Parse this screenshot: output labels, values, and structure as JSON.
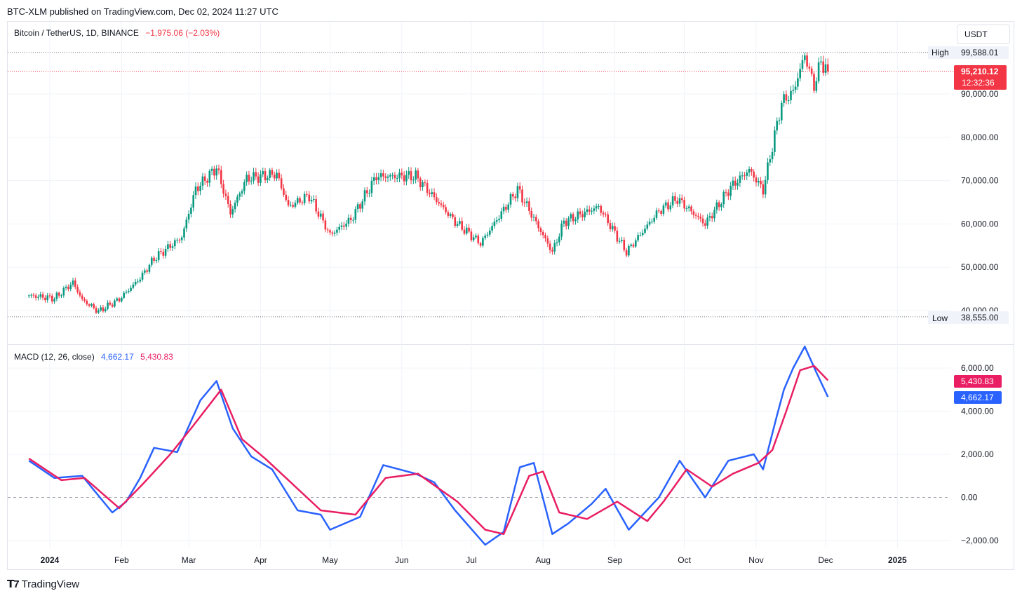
{
  "header": {
    "published": "BTC-XLM published on TradingView.com, Dec 02, 2024 11:27 UTC"
  },
  "legend": {
    "symbol": "Bitcoin / TetherUS, 1D, BINANCE",
    "change": "−1,975.06 (−2.03%)",
    "change_color": "#f23645"
  },
  "currency_button": "USDT",
  "price_axis": {
    "labels": [
      "90,000.00",
      "80,000.00",
      "70,000.00",
      "60,000.00",
      "50,000.00",
      "40,000.00"
    ],
    "high_label": "High",
    "high_value": "99,588.01",
    "low_label": "Low",
    "low_value": "38,555.00",
    "last_price": "95,210.12",
    "countdown": "12:32:36"
  },
  "macd_axis": {
    "labels": [
      "6,000.00",
      "4,000.00",
      "2,000.00",
      "0.00",
      "−2,000.00"
    ],
    "signal_value": "5,430.83",
    "macd_value": "4,662.17"
  },
  "macd_legend": {
    "title": "MACD (12, 26, close)",
    "macd": "4,662.17",
    "signal": "5,430.83"
  },
  "time_axis": [
    "2024",
    "Feb",
    "Mar",
    "Apr",
    "May",
    "Jun",
    "Jul",
    "Aug",
    "Sep",
    "Oct",
    "Nov",
    "Dec",
    "2025"
  ],
  "colors": {
    "up": "#089981",
    "down": "#f23645",
    "macd": "#2962ff",
    "signal": "#e91e63",
    "grid": "#f0f3fa"
  },
  "footer": {
    "brand": "TradingView"
  },
  "chart_data": [
    {
      "type": "candlestick",
      "title": "Bitcoin / TetherUS, 1D, BINANCE",
      "ylim": [
        38555,
        99588.01
      ],
      "x_start": "2023-12-23",
      "x_end": "2024-12-02",
      "anchors": [
        {
          "date": "2023-12-23",
          "close": 43500
        },
        {
          "date": "2024-01-03",
          "close": 42800
        },
        {
          "date": "2024-01-11",
          "close": 46500
        },
        {
          "date": "2024-01-15",
          "close": 42500
        },
        {
          "date": "2024-01-22",
          "close": 39800
        },
        {
          "date": "2024-01-31",
          "close": 42600
        },
        {
          "date": "2024-02-09",
          "close": 47500
        },
        {
          "date": "2024-02-15",
          "close": 52000
        },
        {
          "date": "2024-02-27",
          "close": 57000
        },
        {
          "date": "2024-03-04",
          "close": 68000
        },
        {
          "date": "2024-03-13",
          "close": 73000
        },
        {
          "date": "2024-03-19",
          "close": 62500
        },
        {
          "date": "2024-03-26",
          "close": 70500
        },
        {
          "date": "2024-04-08",
          "close": 71500
        },
        {
          "date": "2024-04-13",
          "close": 64000
        },
        {
          "date": "2024-04-22",
          "close": 66500
        },
        {
          "date": "2024-05-01",
          "close": 57500
        },
        {
          "date": "2024-05-10",
          "close": 61000
        },
        {
          "date": "2024-05-21",
          "close": 71000
        },
        {
          "date": "2024-06-07",
          "close": 71000
        },
        {
          "date": "2024-06-24",
          "close": 60500
        },
        {
          "date": "2024-07-05",
          "close": 55500
        },
        {
          "date": "2024-07-21",
          "close": 68000
        },
        {
          "date": "2024-08-05",
          "close": 53500
        },
        {
          "date": "2024-08-10",
          "close": 60500
        },
        {
          "date": "2024-08-25",
          "close": 64000
        },
        {
          "date": "2024-09-06",
          "close": 53500
        },
        {
          "date": "2024-09-20",
          "close": 63000
        },
        {
          "date": "2024-09-28",
          "close": 65800
        },
        {
          "date": "2024-10-10",
          "close": 60000
        },
        {
          "date": "2024-10-21",
          "close": 68500
        },
        {
          "date": "2024-10-29",
          "close": 72500
        },
        {
          "date": "2024-11-04",
          "close": 67800
        },
        {
          "date": "2024-11-12",
          "close": 88000
        },
        {
          "date": "2024-11-17",
          "close": 90500
        },
        {
          "date": "2024-11-22",
          "close": 99000
        },
        {
          "date": "2024-11-26",
          "close": 91800
        },
        {
          "date": "2024-11-29",
          "close": 97500
        },
        {
          "date": "2024-12-02",
          "close": 95210.12
        }
      ],
      "high": 99588.01,
      "low": 38555.0,
      "last": 95210.12
    },
    {
      "type": "line",
      "title": "MACD (12, 26, close)",
      "ylim": [
        -2300,
        7000
      ],
      "series": [
        {
          "name": "MACD",
          "color": "#2962ff",
          "points": [
            [
              "2023-12-23",
              1700
            ],
            [
              "2024-01-03",
              900
            ],
            [
              "2024-01-15",
              1000
            ],
            [
              "2024-01-28",
              -700
            ],
            [
              "2024-02-03",
              -200
            ],
            [
              "2024-02-09",
              900
            ],
            [
              "2024-02-15",
              2300
            ],
            [
              "2024-02-25",
              2100
            ],
            [
              "2024-03-06",
              4500
            ],
            [
              "2024-03-13",
              5400
            ],
            [
              "2024-03-20",
              3200
            ],
            [
              "2024-03-28",
              1900
            ],
            [
              "2024-04-06",
              1300
            ],
            [
              "2024-04-17",
              -600
            ],
            [
              "2024-04-27",
              -800
            ],
            [
              "2024-05-01",
              -1500
            ],
            [
              "2024-05-14",
              -900
            ],
            [
              "2024-05-24",
              1500
            ],
            [
              "2024-06-07",
              1100
            ],
            [
              "2024-06-15",
              700
            ],
            [
              "2024-06-24",
              -600
            ],
            [
              "2024-07-07",
              -2200
            ],
            [
              "2024-07-15",
              -1600
            ],
            [
              "2024-07-22",
              1400
            ],
            [
              "2024-07-28",
              1600
            ],
            [
              "2024-08-05",
              -1700
            ],
            [
              "2024-08-12",
              -1200
            ],
            [
              "2024-08-22",
              -300
            ],
            [
              "2024-08-28",
              400
            ],
            [
              "2024-09-07",
              -1500
            ],
            [
              "2024-09-20",
              0
            ],
            [
              "2024-09-29",
              1700
            ],
            [
              "2024-10-10",
              0
            ],
            [
              "2024-10-20",
              1700
            ],
            [
              "2024-10-31",
              2000
            ],
            [
              "2024-11-04",
              1300
            ],
            [
              "2024-11-10",
              3800
            ],
            [
              "2024-11-13",
              5000
            ],
            [
              "2024-11-17",
              6000
            ],
            [
              "2024-11-22",
              7000
            ],
            [
              "2024-11-27",
              5800
            ],
            [
              "2024-12-02",
              4662.17
            ]
          ]
        },
        {
          "name": "Signal",
          "color": "#e91e63",
          "points": [
            [
              "2023-12-23",
              1800
            ],
            [
              "2024-01-06",
              800
            ],
            [
              "2024-01-16",
              900
            ],
            [
              "2024-01-31",
              -500
            ],
            [
              "2024-02-10",
              600
            ],
            [
              "2024-02-22",
              2000
            ],
            [
              "2024-03-02",
              3200
            ],
            [
              "2024-03-15",
              5000
            ],
            [
              "2024-03-24",
              2700
            ],
            [
              "2024-04-03",
              1800
            ],
            [
              "2024-04-12",
              900
            ],
            [
              "2024-04-27",
              -600
            ],
            [
              "2024-05-12",
              -800
            ],
            [
              "2024-05-25",
              900
            ],
            [
              "2024-06-08",
              1100
            ],
            [
              "2024-06-25",
              -200
            ],
            [
              "2024-07-07",
              -1500
            ],
            [
              "2024-07-15",
              -1700
            ],
            [
              "2024-07-26",
              1000
            ],
            [
              "2024-08-01",
              1200
            ],
            [
              "2024-08-08",
              -700
            ],
            [
              "2024-08-20",
              -1000
            ],
            [
              "2024-09-02",
              -200
            ],
            [
              "2024-09-15",
              -1100
            ],
            [
              "2024-09-22",
              -200
            ],
            [
              "2024-10-02",
              1300
            ],
            [
              "2024-10-13",
              500
            ],
            [
              "2024-10-22",
              1100
            ],
            [
              "2024-11-02",
              1600
            ],
            [
              "2024-11-08",
              2200
            ],
            [
              "2024-11-14",
              4000
            ],
            [
              "2024-11-20",
              5900
            ],
            [
              "2024-11-26",
              6100
            ],
            [
              "2024-12-02",
              5430.83
            ]
          ]
        }
      ]
    }
  ]
}
